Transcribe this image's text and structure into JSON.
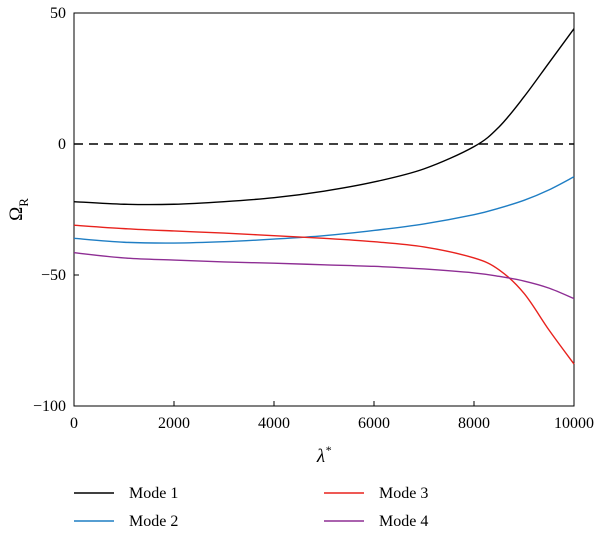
{
  "chart_data": {
    "type": "line",
    "title": "",
    "xlabel": "λ",
    "xlabel_sup": "*",
    "ylabel": "Ω",
    "ylabel_sub": "R",
    "xlim": [
      0,
      10000
    ],
    "ylim": [
      -100,
      50
    ],
    "xticks": [
      0,
      2000,
      4000,
      6000,
      8000,
      10000
    ],
    "xtick_labels": [
      "0",
      "2000",
      "4000",
      "6000",
      "8000",
      "10000"
    ],
    "yticks": [
      50,
      0,
      -50,
      -100
    ],
    "ytick_labels": [
      "50",
      "0",
      "−50",
      "−100"
    ],
    "grid": false,
    "legend_position": "bottom",
    "reference_line": {
      "y": 0,
      "style": "dashed",
      "color": "#000000"
    },
    "x": [
      0,
      1000,
      2000,
      3000,
      4000,
      5000,
      6000,
      7000,
      8000,
      8500,
      9000,
      9500,
      10000
    ],
    "series": [
      {
        "name": "Mode 1",
        "color": "#000000",
        "values": [
          -22,
          -23,
          -23,
          -22,
          -20.5,
          -18,
          -14.5,
          -9.5,
          -1,
          6.5,
          18,
          31,
          44
        ]
      },
      {
        "name": "Mode 2",
        "color": "#1f7ec4",
        "values": [
          -36,
          -37.5,
          -37.8,
          -37.3,
          -36.3,
          -35,
          -33,
          -30.5,
          -27,
          -24.5,
          -21.5,
          -17.5,
          -12.5
        ]
      },
      {
        "name": "Mode 3",
        "color": "#e8221d",
        "values": [
          -31,
          -32.3,
          -33.2,
          -34,
          -35,
          -36,
          -37.3,
          -39.3,
          -43.5,
          -48,
          -57,
          -71,
          -84
        ]
      },
      {
        "name": "Mode 4",
        "color": "#8e2e94",
        "values": [
          -41.5,
          -43.5,
          -44.3,
          -45,
          -45.5,
          -46.1,
          -46.7,
          -47.7,
          -49.2,
          -50.5,
          -52.3,
          -55,
          -59
        ]
      }
    ]
  }
}
